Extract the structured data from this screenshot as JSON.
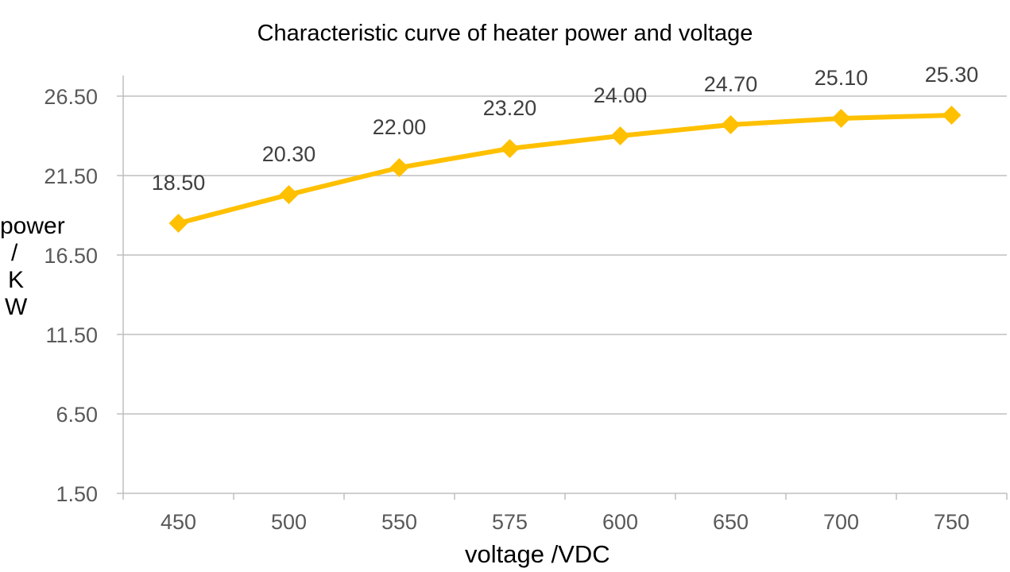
{
  "chart_data": {
    "type": "line",
    "title": "Characteristic curve of heater power and voltage",
    "xlabel": "voltage /VDC",
    "ylabel": [
      "power",
      "/",
      "K",
      "W"
    ],
    "categories": [
      "450",
      "500",
      "550",
      "575",
      "600",
      "650",
      "700",
      "750"
    ],
    "series": [
      {
        "values": [
          18.5,
          20.3,
          22.0,
          23.2,
          24.0,
          24.7,
          25.1,
          25.3
        ],
        "labels": [
          "18.50",
          "20.30",
          "22.00",
          "23.20",
          "24.00",
          "24.70",
          "25.10",
          "25.30"
        ],
        "color": "#FFC000",
        "marker": "diamond"
      }
    ],
    "yticks": [
      "1.50",
      "6.50",
      "11.50",
      "16.50",
      "21.50",
      "26.50"
    ],
    "ylim": [
      1.5,
      27.8
    ],
    "grid": true,
    "legend": "none"
  }
}
